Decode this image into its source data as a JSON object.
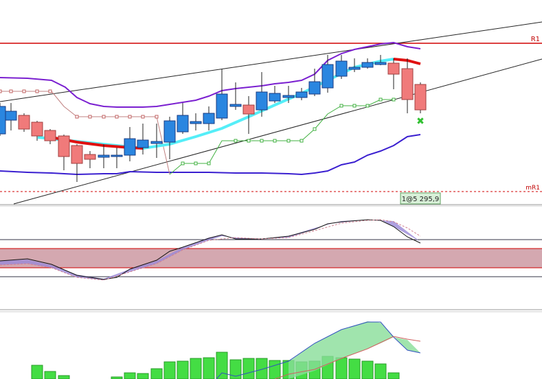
{
  "labels": {
    "resistance": "R1",
    "mid_resistance": "mR1",
    "price_tag": "1@5 295,9"
  }
}
